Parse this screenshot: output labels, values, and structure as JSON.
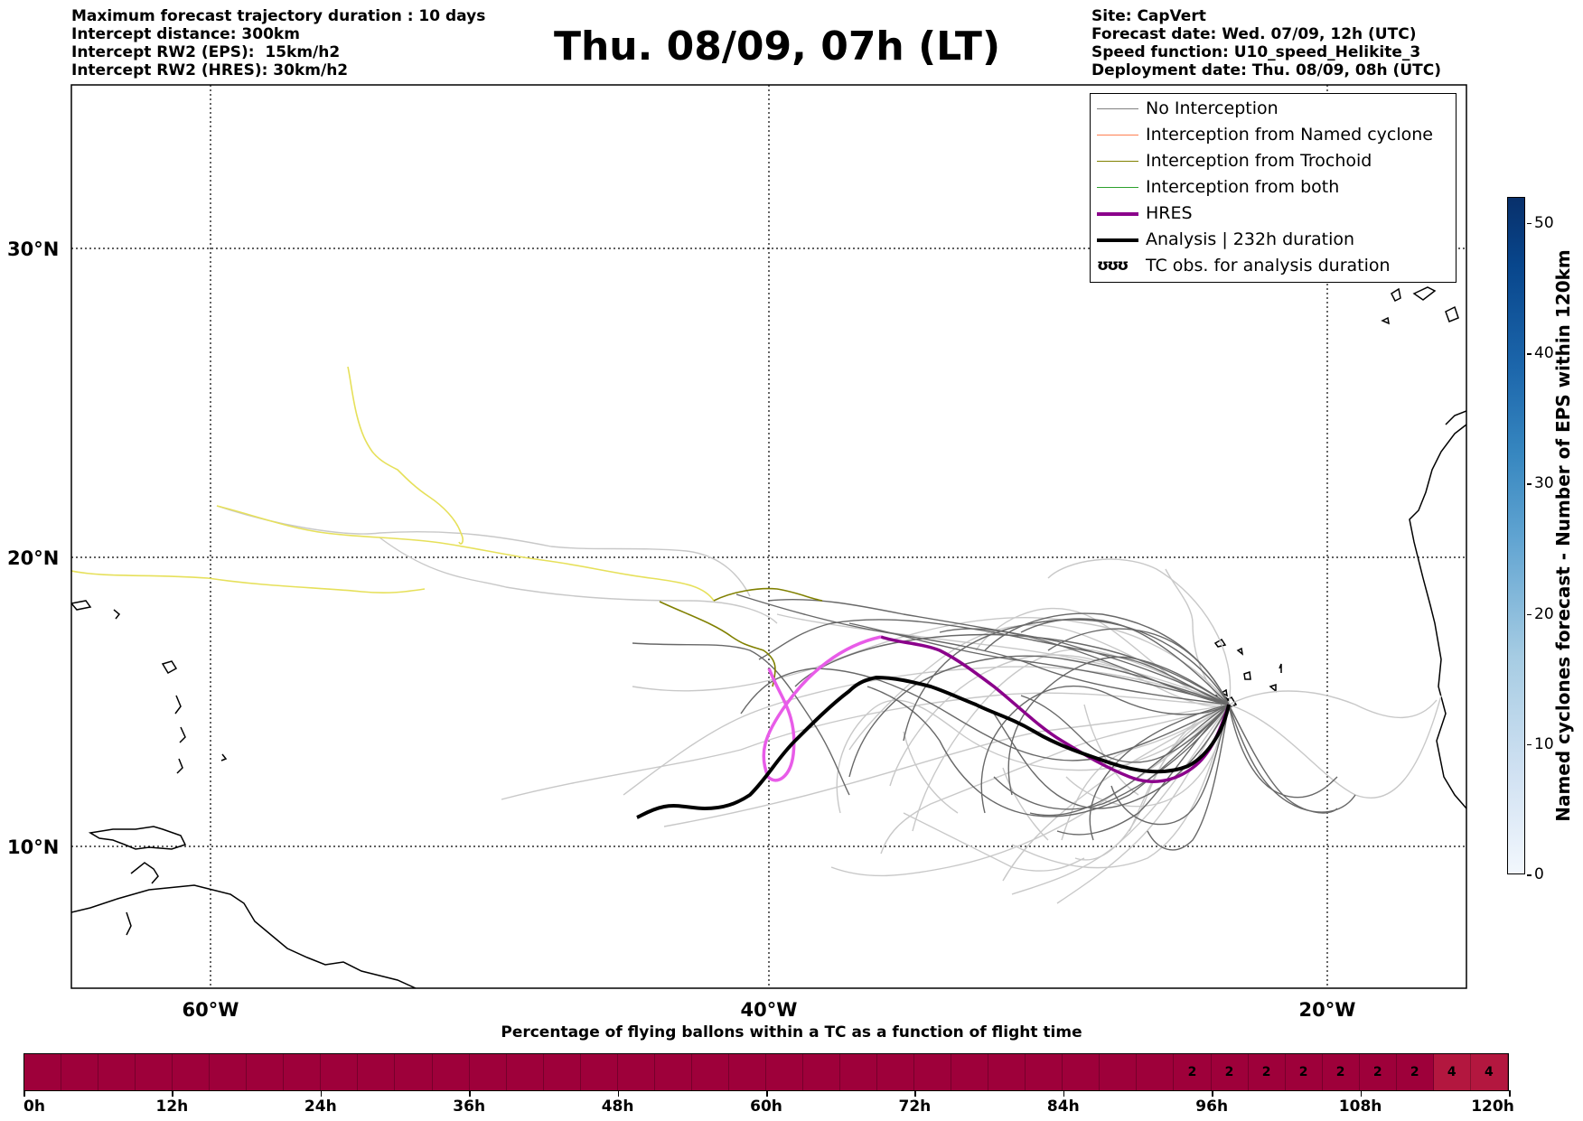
{
  "header": {
    "left_lines": [
      "Maximum forecast trajectory duration : 10 days",
      "Intercept distance: 300km",
      "Intercept RW2 (EPS):  15km/h2",
      "Intercept RW2 (HRES): 30km/h2"
    ],
    "title": "Thu. 08/09, 07h (LT)",
    "right_lines": [
      "Site: CapVert",
      "Forecast date: Wed. 07/09, 12h (UTC)",
      "Speed function: U10_speed_Helikite_3",
      "Deployment date: Thu. 08/09, 08h (UTC)"
    ]
  },
  "map": {
    "lat_labels": [
      "30°N",
      "20°N",
      "10°N"
    ],
    "lon_labels": [
      "60°W",
      "40°W",
      "20°W"
    ]
  },
  "legend": {
    "items": [
      {
        "label": "No Interception",
        "color": "#808080"
      },
      {
        "label": "Interception from Named cyclone",
        "color": "#ff7f50"
      },
      {
        "label": "Interception from Trochoid",
        "color": "#808000"
      },
      {
        "label": "Interception from both",
        "color": "#2ca02c"
      },
      {
        "label": "HRES",
        "color": "#8b008b"
      },
      {
        "label": "Analysis | 232h duration",
        "color": "#000000"
      },
      {
        "label": "TC obs. for analysis duration",
        "symbol": "ʊʊʊ"
      }
    ]
  },
  "colorbar": {
    "title": "Named cyclones forecast - Number of EPS within 120km",
    "ticks": [
      "0",
      "10",
      "20",
      "30",
      "40",
      "50"
    ],
    "max": 52
  },
  "timebar": {
    "title": "Percentage of flying ballons within a TC as a function of flight time",
    "tick_labels": [
      "0h",
      "12h",
      "24h",
      "36h",
      "48h",
      "60h",
      "72h",
      "84h",
      "96h",
      "108h",
      "120h"
    ],
    "cell_values": [
      "",
      "",
      "",
      "",
      "",
      "",
      "",
      "",
      "",
      "",
      "",
      "",
      "",
      "",
      "",
      "",
      "",
      "",
      "",
      "",
      "",
      "",
      "",
      "",
      "",
      "",
      "",
      "",
      "",
      "",
      "",
      "2",
      "2",
      "2",
      "2",
      "2",
      "2",
      "2",
      "4",
      "4"
    ],
    "base_color": "#9e003a",
    "highlight_color": "#b3173f"
  }
}
